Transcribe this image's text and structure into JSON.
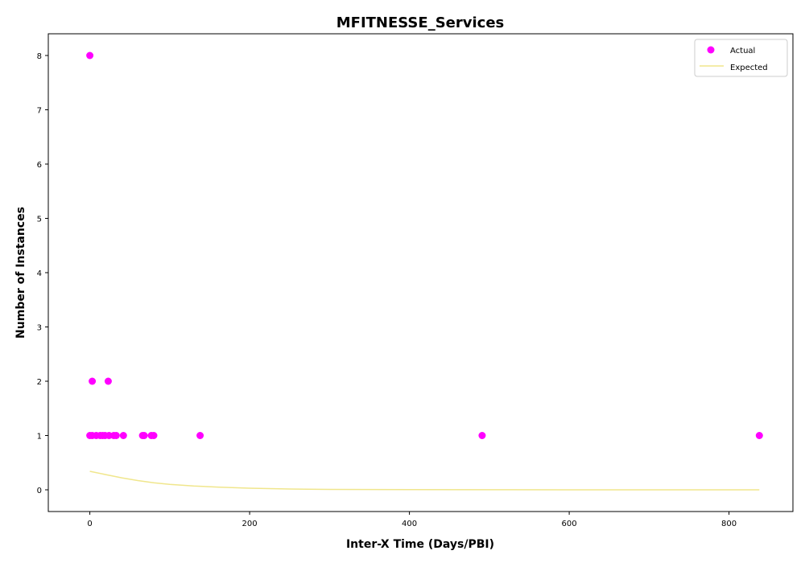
{
  "chart_data": {
    "type": "scatter",
    "title": "MFITNESSE_Services",
    "xlabel": "Inter-X Time (Days/PBI)",
    "ylabel": "Number of Instances",
    "xlim": [
      -52,
      880
    ],
    "ylim": [
      -0.4,
      8.4
    ],
    "xticks": [
      0,
      200,
      400,
      600,
      800
    ],
    "yticks": [
      0,
      1,
      2,
      3,
      4,
      5,
      6,
      7,
      8
    ],
    "grid": false,
    "legend_position": "top-right",
    "series": [
      {
        "name": "Actual",
        "kind": "scatter",
        "color": "#ff00ff",
        "points": [
          [
            0,
            8
          ],
          [
            0,
            1
          ],
          [
            3,
            2
          ],
          [
            3,
            1
          ],
          [
            8,
            1
          ],
          [
            13,
            1
          ],
          [
            16,
            1
          ],
          [
            19,
            1
          ],
          [
            23,
            2
          ],
          [
            24,
            1
          ],
          [
            30,
            1
          ],
          [
            33,
            1
          ],
          [
            42,
            1
          ],
          [
            66,
            1
          ],
          [
            68,
            1
          ],
          [
            77,
            1
          ],
          [
            80,
            1
          ],
          [
            138,
            1
          ],
          [
            491,
            1
          ],
          [
            838,
            1
          ]
        ]
      },
      {
        "name": "Expected",
        "kind": "line",
        "color": "#f0e68c",
        "points": [
          [
            0,
            0.34
          ],
          [
            20,
            0.28
          ],
          [
            40,
            0.22
          ],
          [
            60,
            0.17
          ],
          [
            80,
            0.13
          ],
          [
            100,
            0.1
          ],
          [
            130,
            0.07
          ],
          [
            160,
            0.05
          ],
          [
            200,
            0.03
          ],
          [
            250,
            0.015
          ],
          [
            300,
            0.008
          ],
          [
            400,
            0.003
          ],
          [
            500,
            0.001
          ],
          [
            600,
            0.0004
          ],
          [
            700,
            0.0002
          ],
          [
            838,
            0.0001
          ]
        ]
      }
    ]
  }
}
